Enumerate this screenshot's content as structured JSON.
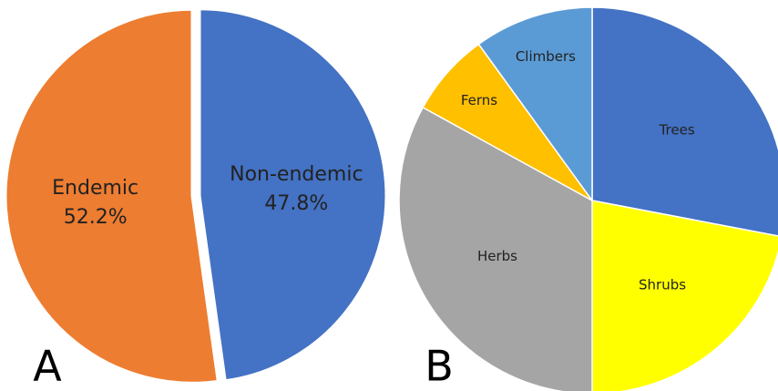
{
  "chart_data": [
    {
      "type": "pie",
      "label": "A",
      "categories": [
        "Non-endemic",
        "Endemic"
      ],
      "values": [
        47.8,
        52.2
      ],
      "value_labels": [
        "47.8%",
        "52.2%"
      ],
      "colors": [
        "#4472c4",
        "#ed7d31"
      ]
    },
    {
      "type": "pie",
      "label": "B",
      "categories": [
        "Trees",
        "Shrubs",
        "Herbs",
        "Ferns",
        "Climbers"
      ],
      "values": [
        28,
        22,
        33,
        7,
        10
      ],
      "colors": [
        "#4472c4",
        "#ffff00",
        "#a5a5a5",
        "#ffc000",
        "#5b9bd5"
      ]
    }
  ]
}
